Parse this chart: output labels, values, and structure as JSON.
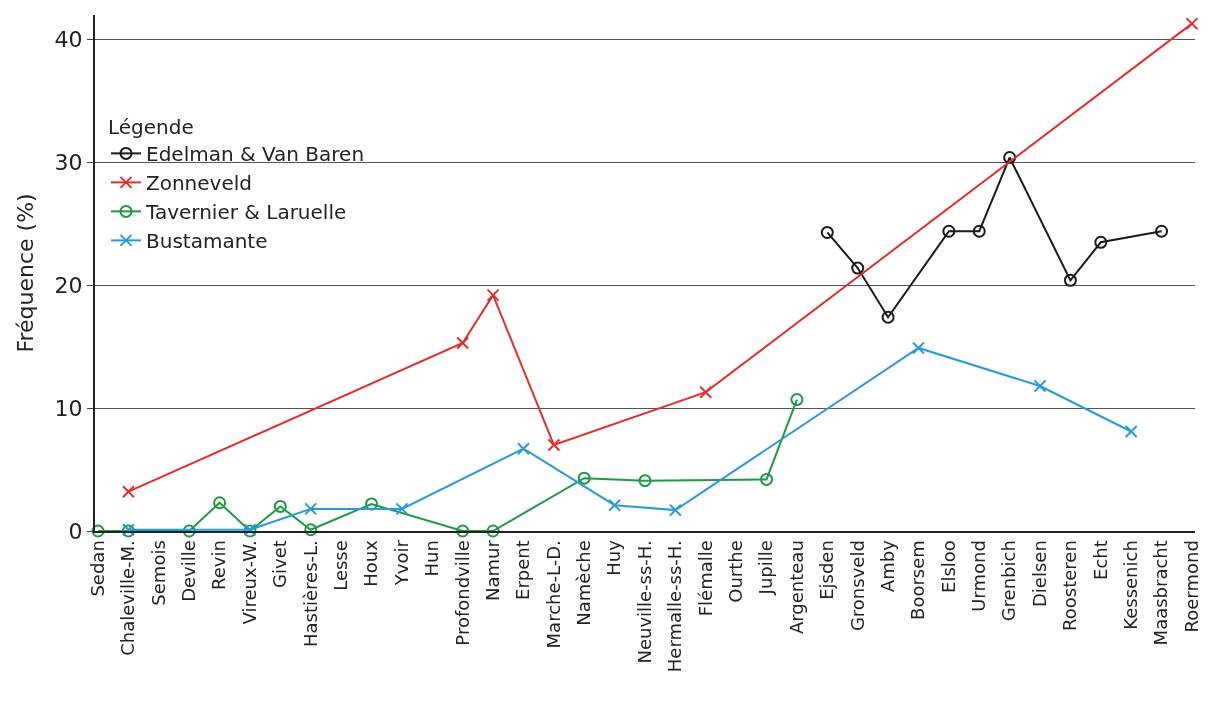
{
  "chart_data": {
    "type": "line",
    "ylabel": "Fréquence (%)",
    "legend_title": "Légende",
    "legend": "top left",
    "grid": "y",
    "categories": [
      "Sedan",
      "Chaleville-M.",
      "Semois",
      "Deville",
      "Revin",
      "Vireux-W.",
      "Givet",
      "Hastières-L.",
      "Lesse",
      "Houx",
      "Yvoir",
      "Hun",
      "Profondville",
      "Namur",
      "Erpent",
      "Marche-L-D.",
      "Namèche",
      "Huy",
      "Neuville-ss-H.",
      "Hermalle-ss-H.",
      "Flémalle",
      "Ourthe",
      "Jupille",
      "Argenteau",
      "Ejsden",
      "Gronsveld",
      "Amby",
      "Boorsem",
      "Elsloo",
      "Urmond",
      "Grenbich",
      "Dielsen",
      "Roosteren",
      "Echt",
      "Kessenich",
      "Maasbracht",
      "Roermond"
    ],
    "ylim": [
      0,
      42
    ],
    "yticks": [
      0,
      10,
      20,
      30,
      40
    ],
    "series": [
      {
        "name": "Edelman & Van Baren",
        "color": "#1a1a1a",
        "marker": "circle",
        "values": [
          null,
          null,
          null,
          null,
          null,
          null,
          null,
          null,
          null,
          null,
          null,
          null,
          null,
          null,
          null,
          null,
          null,
          null,
          null,
          null,
          null,
          null,
          null,
          null,
          24.3,
          21.4,
          17.4,
          null,
          24.4,
          24.4,
          30.4,
          null,
          20.4,
          23.5,
          null,
          24.4,
          null
        ]
      },
      {
        "name": "Zonneveld",
        "color": "#e0302c",
        "marker": "cross",
        "values": [
          null,
          3.2,
          null,
          null,
          null,
          null,
          null,
          null,
          null,
          null,
          null,
          null,
          15.3,
          19.2,
          null,
          7.0,
          null,
          null,
          null,
          null,
          11.3,
          null,
          null,
          null,
          null,
          null,
          null,
          null,
          null,
          null,
          null,
          null,
          null,
          null,
          null,
          null,
          41.3
        ]
      },
      {
        "name": "Tavernier & Laruelle",
        "color": "#1f9a44",
        "marker": "circle",
        "values": [
          0,
          0,
          null,
          0,
          2.3,
          0,
          2.0,
          0.1,
          null,
          2.2,
          null,
          null,
          0,
          0,
          null,
          null,
          4.3,
          null,
          4.1,
          null,
          null,
          null,
          4.2,
          10.7,
          null,
          null,
          null,
          null,
          null,
          null,
          null,
          null,
          null,
          null,
          null,
          null,
          null
        ]
      },
      {
        "name": "Bustamante",
        "color": "#2a9ad8",
        "marker": "cross",
        "values": [
          null,
          0.1,
          null,
          null,
          null,
          0.1,
          null,
          1.8,
          null,
          null,
          1.8,
          null,
          null,
          null,
          6.7,
          null,
          null,
          2.1,
          null,
          1.7,
          null,
          null,
          null,
          null,
          null,
          null,
          null,
          14.9,
          null,
          null,
          null,
          11.8,
          null,
          null,
          8.1,
          null,
          null
        ]
      }
    ]
  }
}
